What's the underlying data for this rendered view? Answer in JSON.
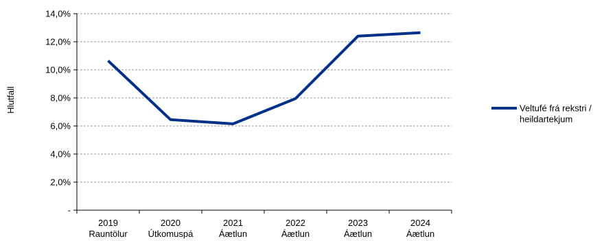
{
  "chart_data": {
    "type": "line",
    "categories": [
      [
        "2019",
        "Rauntölur"
      ],
      [
        "2020",
        "Útkomuspá"
      ],
      [
        "2021",
        "Áætlun"
      ],
      [
        "2022",
        "Áætlun"
      ],
      [
        "2023",
        "Áætlun"
      ],
      [
        "2024",
        "Áætlun"
      ]
    ],
    "series": [
      {
        "name": "Veltufé frá rekstri / heildartekjum",
        "name_lines": [
          "Veltufé frá rekstri /",
          "heildartekjum"
        ],
        "color": "#003087",
        "values": [
          10.65,
          6.45,
          6.15,
          7.95,
          12.4,
          12.65
        ]
      }
    ],
    "ylabel": "Hlutfall",
    "ylim": [
      0,
      14
    ],
    "yticks": [
      0,
      2,
      4,
      6,
      8,
      10,
      12,
      14
    ],
    "ytick_labels": [
      "-",
      "2,0%",
      "4,0%",
      "6,0%",
      "8,0%",
      "10,0%",
      "12,0%",
      "14,0%"
    ],
    "grid": true,
    "legend": "right"
  }
}
